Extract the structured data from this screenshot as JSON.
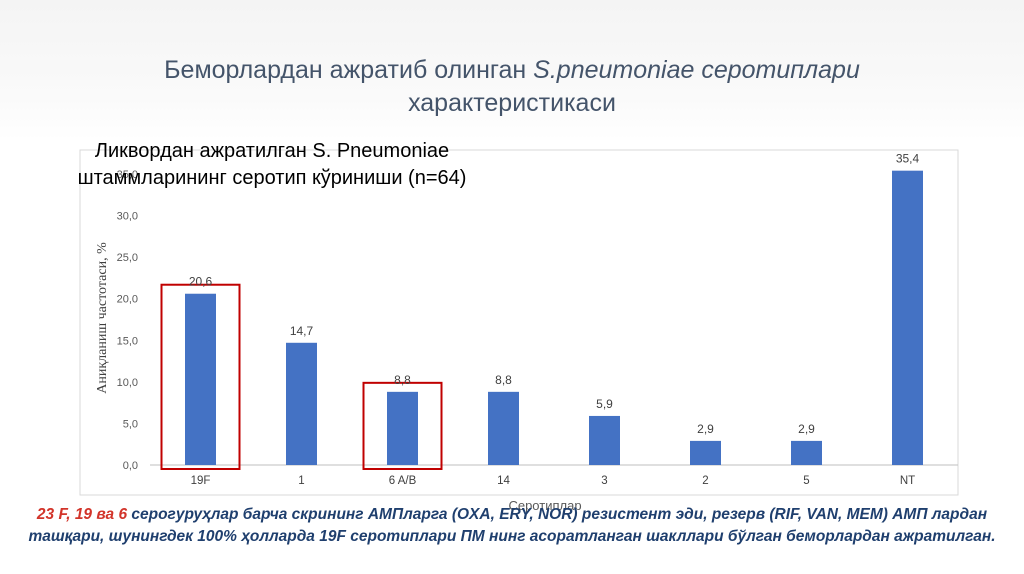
{
  "slide": {
    "title_part1": "Беморлардан ажратиб олинган ",
    "title_italic": "S.pneumoniae серотиплари",
    "title_line2": "характеристикаси",
    "note_red": "23 F, 19 ва 6",
    "note_rest": " серогуруҳлар барча скрининг АМПларга (OXA, ERY, NOR) резистент эди, резерв (RIF, VAN, MEM) АМП лардан ташқари, шунингдек 100% ҳолларда 19F серотиплари ПМ нинг асоратланган шакллари бўлган беморлардан ажратилган."
  },
  "colors": {
    "bar": "#4472c4",
    "highlight_box": "#c00000",
    "note_text": "#1f3f6e",
    "note_red": "#d2342a",
    "title": "#44546a"
  },
  "chart_data": {
    "type": "bar",
    "title": "Ликвордан ажратилган S. Pneumoniae штаммларининг серотип кўриниши (n=64)",
    "xlabel": "Серотиплар",
    "ylabel": "Аниқланиш частотаси, %",
    "categories": [
      "19F",
      "1",
      "6 A/B",
      "14",
      "3",
      "2",
      "5",
      "NT"
    ],
    "values": [
      20.6,
      14.7,
      8.8,
      8.8,
      5.9,
      2.9,
      2.9,
      35.4
    ],
    "value_labels": [
      "20,6",
      "14,7",
      "8,8",
      "8,8",
      "5,9",
      "2,9",
      "2,9",
      "35,4"
    ],
    "ylim": [
      0,
      35
    ],
    "yticks": [
      0,
      5,
      10,
      15,
      20,
      25,
      30,
      35
    ],
    "ytick_labels": [
      "0,0",
      "5,0",
      "10,0",
      "15,0",
      "20,0",
      "25,0",
      "30,0",
      "35,0"
    ],
    "highlighted_categories": [
      "19F",
      "6 A/B"
    ],
    "grid": false,
    "legend": "none"
  }
}
